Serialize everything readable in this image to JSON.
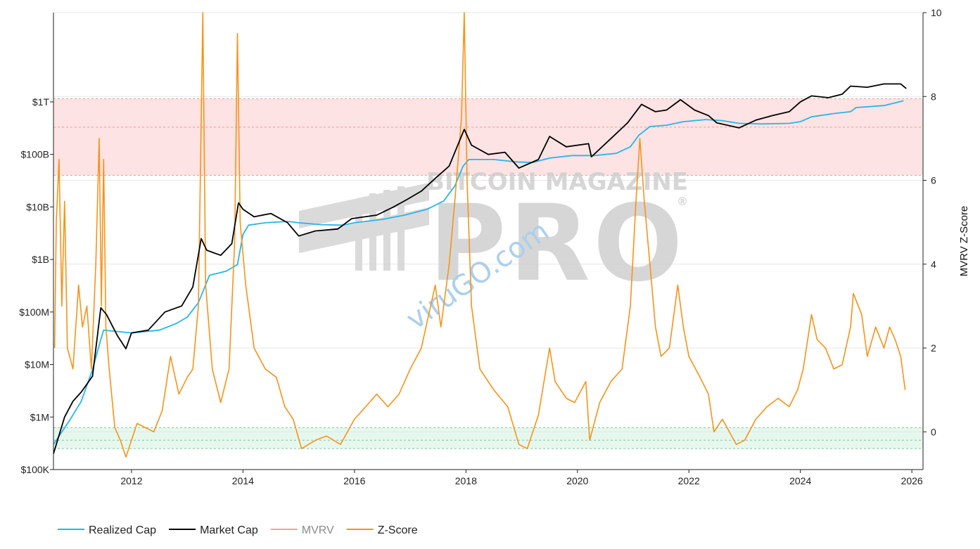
{
  "chart_data": {
    "type": "line",
    "title": "",
    "xlabel": "",
    "ylabel_left": "",
    "ylabel_right": "MVRV Z-Score",
    "x_ticks": [
      "2012",
      "2014",
      "2016",
      "2018",
      "2020",
      "2022",
      "2024",
      "2026"
    ],
    "x_range": [
      2010.6,
      2026.2
    ],
    "y_left_scale": "log",
    "y_left_ticks": [
      "$100K",
      "$1M",
      "$10M",
      "$100M",
      "$1B",
      "$10B",
      "$100B",
      "$1T"
    ],
    "y_left_range_usd": [
      100000,
      50000000000000
    ],
    "y_right_ticks": [
      "0",
      "2",
      "4",
      "6",
      "8",
      "10"
    ],
    "y_right_range": [
      -0.9,
      10
    ],
    "grid": true,
    "legend_position": "bottom-left",
    "bands": [
      {
        "name": "overvalued-zone",
        "axis": "left",
        "from_usd": 40000000000,
        "to_usd": 1150000000000,
        "color": "#fde3e3",
        "midline_usd": 330000000000
      },
      {
        "name": "undervalued-zone",
        "axis": "right",
        "from": -0.4,
        "to": 0.1,
        "color": "#e6f8ee",
        "midline": -0.2
      }
    ],
    "series": [
      {
        "name": "Realized Cap",
        "axis": "left",
        "color": "#29b5e8",
        "points": [
          [
            2010.6,
            300000
          ],
          [
            2010.9,
            900000
          ],
          [
            2011.1,
            2000000
          ],
          [
            2011.3,
            8000000
          ],
          [
            2011.45,
            30000000
          ],
          [
            2011.5,
            45000000
          ],
          [
            2011.8,
            42000000
          ],
          [
            2012.0,
            40000000
          ],
          [
            2012.5,
            45000000
          ],
          [
            2012.8,
            60000000
          ],
          [
            2013.0,
            80000000
          ],
          [
            2013.2,
            150000000
          ],
          [
            2013.4,
            500000000
          ],
          [
            2013.7,
            600000000
          ],
          [
            2013.9,
            800000000
          ],
          [
            2014.0,
            3000000000
          ],
          [
            2014.1,
            4500000000
          ],
          [
            2014.4,
            5000000000
          ],
          [
            2014.8,
            5300000000
          ],
          [
            2015.0,
            5000000000
          ],
          [
            2015.4,
            4600000000
          ],
          [
            2015.8,
            4500000000
          ],
          [
            2016.0,
            5000000000
          ],
          [
            2016.5,
            5800000000
          ],
          [
            2016.9,
            7000000000
          ],
          [
            2017.3,
            9000000000
          ],
          [
            2017.6,
            13000000000
          ],
          [
            2017.8,
            25000000000
          ],
          [
            2017.95,
            60000000000
          ],
          [
            2018.05,
            80000000000
          ],
          [
            2018.5,
            80000000000
          ],
          [
            2018.9,
            72000000000
          ],
          [
            2019.2,
            70000000000
          ],
          [
            2019.5,
            85000000000
          ],
          [
            2019.9,
            95000000000
          ],
          [
            2020.3,
            95000000000
          ],
          [
            2020.7,
            105000000000
          ],
          [
            2020.95,
            140000000000
          ],
          [
            2021.1,
            230000000000
          ],
          [
            2021.3,
            340000000000
          ],
          [
            2021.6,
            360000000000
          ],
          [
            2021.9,
            420000000000
          ],
          [
            2022.3,
            460000000000
          ],
          [
            2022.6,
            440000000000
          ],
          [
            2022.9,
            390000000000
          ],
          [
            2023.3,
            380000000000
          ],
          [
            2023.8,
            390000000000
          ],
          [
            2024.0,
            420000000000
          ],
          [
            2024.2,
            520000000000
          ],
          [
            2024.6,
            600000000000
          ],
          [
            2024.9,
            650000000000
          ],
          [
            2025.0,
            780000000000
          ],
          [
            2025.5,
            850000000000
          ],
          [
            2025.85,
            1050000000000
          ]
        ]
      },
      {
        "name": "Market Cap",
        "axis": "left",
        "color": "#000000",
        "points": [
          [
            2010.6,
            200000
          ],
          [
            2010.8,
            1000000
          ],
          [
            2010.95,
            2000000
          ],
          [
            2011.1,
            3000000
          ],
          [
            2011.3,
            6000000
          ],
          [
            2011.45,
            120000000
          ],
          [
            2011.55,
            90000000
          ],
          [
            2011.75,
            35000000
          ],
          [
            2011.9,
            20000000
          ],
          [
            2012.0,
            40000000
          ],
          [
            2012.3,
            45000000
          ],
          [
            2012.6,
            100000000
          ],
          [
            2012.9,
            130000000
          ],
          [
            2013.1,
            300000000
          ],
          [
            2013.25,
            2500000000
          ],
          [
            2013.35,
            1500000000
          ],
          [
            2013.6,
            1200000000
          ],
          [
            2013.8,
            2000000000
          ],
          [
            2013.92,
            12000000000
          ],
          [
            2014.0,
            9000000000
          ],
          [
            2014.2,
            6500000000
          ],
          [
            2014.5,
            7500000000
          ],
          [
            2014.8,
            5000000000
          ],
          [
            2015.0,
            2800000000
          ],
          [
            2015.3,
            3500000000
          ],
          [
            2015.7,
            3800000000
          ],
          [
            2015.95,
            6000000000
          ],
          [
            2016.4,
            7000000000
          ],
          [
            2016.7,
            10000000000
          ],
          [
            2016.95,
            14000000000
          ],
          [
            2017.2,
            20000000000
          ],
          [
            2017.45,
            35000000000
          ],
          [
            2017.7,
            60000000000
          ],
          [
            2017.97,
            300000000000
          ],
          [
            2018.1,
            150000000000
          ],
          [
            2018.4,
            100000000000
          ],
          [
            2018.7,
            110000000000
          ],
          [
            2018.95,
            55000000000
          ],
          [
            2019.3,
            80000000000
          ],
          [
            2019.5,
            220000000000
          ],
          [
            2019.8,
            140000000000
          ],
          [
            2020.2,
            160000000000
          ],
          [
            2020.25,
            90000000000
          ],
          [
            2020.6,
            200000000000
          ],
          [
            2020.9,
            400000000000
          ],
          [
            2021.15,
            900000000000
          ],
          [
            2021.4,
            650000000000
          ],
          [
            2021.6,
            700000000000
          ],
          [
            2021.85,
            1100000000000
          ],
          [
            2022.1,
            700000000000
          ],
          [
            2022.35,
            550000000000
          ],
          [
            2022.5,
            400000000000
          ],
          [
            2022.9,
            320000000000
          ],
          [
            2023.2,
            450000000000
          ],
          [
            2023.5,
            550000000000
          ],
          [
            2023.8,
            650000000000
          ],
          [
            2024.0,
            1000000000000
          ],
          [
            2024.2,
            1300000000000
          ],
          [
            2024.5,
            1200000000000
          ],
          [
            2024.75,
            1400000000000
          ],
          [
            2024.9,
            2000000000000
          ],
          [
            2025.2,
            1900000000000
          ],
          [
            2025.5,
            2200000000000
          ],
          [
            2025.8,
            2200000000000
          ],
          [
            2025.9,
            1800000000000
          ]
        ]
      },
      {
        "name": "MVRV",
        "axis": "right",
        "color": "#f6a0a0",
        "legend_muted": true,
        "points": []
      },
      {
        "name": "Z-Score",
        "axis": "right",
        "color": "#f7931a",
        "points": [
          [
            2010.62,
            2.0
          ],
          [
            2010.65,
            5.0
          ],
          [
            2010.7,
            6.5
          ],
          [
            2010.75,
            3.0
          ],
          [
            2010.8,
            5.5
          ],
          [
            2010.85,
            2.0
          ],
          [
            2010.95,
            1.5
          ],
          [
            2011.05,
            3.5
          ],
          [
            2011.12,
            2.5
          ],
          [
            2011.2,
            3.0
          ],
          [
            2011.28,
            1.5
          ],
          [
            2011.36,
            4.0
          ],
          [
            2011.42,
            7.0
          ],
          [
            2011.46,
            3.0
          ],
          [
            2011.5,
            6.5
          ],
          [
            2011.54,
            2.5
          ],
          [
            2011.6,
            1.5
          ],
          [
            2011.7,
            0.1
          ],
          [
            2011.8,
            -0.2
          ],
          [
            2011.9,
            -0.6
          ],
          [
            2012.0,
            -0.2
          ],
          [
            2012.1,
            0.2
          ],
          [
            2012.25,
            0.1
          ],
          [
            2012.4,
            0.0
          ],
          [
            2012.55,
            0.5
          ],
          [
            2012.7,
            1.8
          ],
          [
            2012.85,
            0.9
          ],
          [
            2013.0,
            1.3
          ],
          [
            2013.1,
            1.5
          ],
          [
            2013.2,
            3.0
          ],
          [
            2013.28,
            10.0
          ],
          [
            2013.33,
            3.5
          ],
          [
            2013.45,
            1.5
          ],
          [
            2013.6,
            0.7
          ],
          [
            2013.75,
            1.5
          ],
          [
            2013.85,
            4.5
          ],
          [
            2013.9,
            9.5
          ],
          [
            2013.95,
            5.0
          ],
          [
            2014.05,
            3.5
          ],
          [
            2014.2,
            2.0
          ],
          [
            2014.4,
            1.5
          ],
          [
            2014.6,
            1.3
          ],
          [
            2014.75,
            0.6
          ],
          [
            2014.9,
            0.3
          ],
          [
            2015.05,
            -0.4
          ],
          [
            2015.3,
            -0.2
          ],
          [
            2015.5,
            -0.1
          ],
          [
            2015.75,
            -0.3
          ],
          [
            2016.0,
            0.3
          ],
          [
            2016.2,
            0.6
          ],
          [
            2016.4,
            0.9
          ],
          [
            2016.6,
            0.6
          ],
          [
            2016.8,
            0.9
          ],
          [
            2017.0,
            1.5
          ],
          [
            2017.2,
            2.0
          ],
          [
            2017.45,
            3.5
          ],
          [
            2017.55,
            2.5
          ],
          [
            2017.7,
            4.0
          ],
          [
            2017.8,
            5.5
          ],
          [
            2017.92,
            7.5
          ],
          [
            2017.97,
            10.0
          ],
          [
            2018.02,
            6.0
          ],
          [
            2018.1,
            3.0
          ],
          [
            2018.25,
            1.5
          ],
          [
            2018.5,
            1.0
          ],
          [
            2018.75,
            0.6
          ],
          [
            2018.95,
            -0.3
          ],
          [
            2019.1,
            -0.4
          ],
          [
            2019.3,
            0.4
          ],
          [
            2019.5,
            2.0
          ],
          [
            2019.6,
            1.2
          ],
          [
            2019.8,
            0.8
          ],
          [
            2019.95,
            0.7
          ],
          [
            2020.15,
            1.2
          ],
          [
            2020.22,
            -0.2
          ],
          [
            2020.4,
            0.7
          ],
          [
            2020.6,
            1.2
          ],
          [
            2020.8,
            1.5
          ],
          [
            2020.95,
            3.0
          ],
          [
            2021.05,
            5.5
          ],
          [
            2021.12,
            7.0
          ],
          [
            2021.2,
            5.5
          ],
          [
            2021.3,
            4.0
          ],
          [
            2021.4,
            2.5
          ],
          [
            2021.5,
            1.8
          ],
          [
            2021.65,
            2.0
          ],
          [
            2021.8,
            3.5
          ],
          [
            2021.9,
            2.5
          ],
          [
            2022.0,
            1.8
          ],
          [
            2022.2,
            1.3
          ],
          [
            2022.35,
            0.9
          ],
          [
            2022.45,
            0.0
          ],
          [
            2022.6,
            0.3
          ],
          [
            2022.85,
            -0.3
          ],
          [
            2023.0,
            -0.2
          ],
          [
            2023.2,
            0.3
          ],
          [
            2023.4,
            0.6
          ],
          [
            2023.6,
            0.8
          ],
          [
            2023.8,
            0.6
          ],
          [
            2023.95,
            1.0
          ],
          [
            2024.05,
            1.5
          ],
          [
            2024.2,
            2.8
          ],
          [
            2024.3,
            2.2
          ],
          [
            2024.45,
            2.0
          ],
          [
            2024.6,
            1.5
          ],
          [
            2024.75,
            1.6
          ],
          [
            2024.9,
            2.5
          ],
          [
            2024.95,
            3.3
          ],
          [
            2025.1,
            2.8
          ],
          [
            2025.2,
            1.8
          ],
          [
            2025.35,
            2.5
          ],
          [
            2025.5,
            2.0
          ],
          [
            2025.6,
            2.5
          ],
          [
            2025.7,
            2.2
          ],
          [
            2025.8,
            1.8
          ],
          [
            2025.88,
            1.0
          ]
        ]
      }
    ]
  },
  "watermark": {
    "line1": "BITCOIN MAGAZINE",
    "line2": "PRO",
    "registered": "®",
    "overlay": "viruGO.com"
  }
}
